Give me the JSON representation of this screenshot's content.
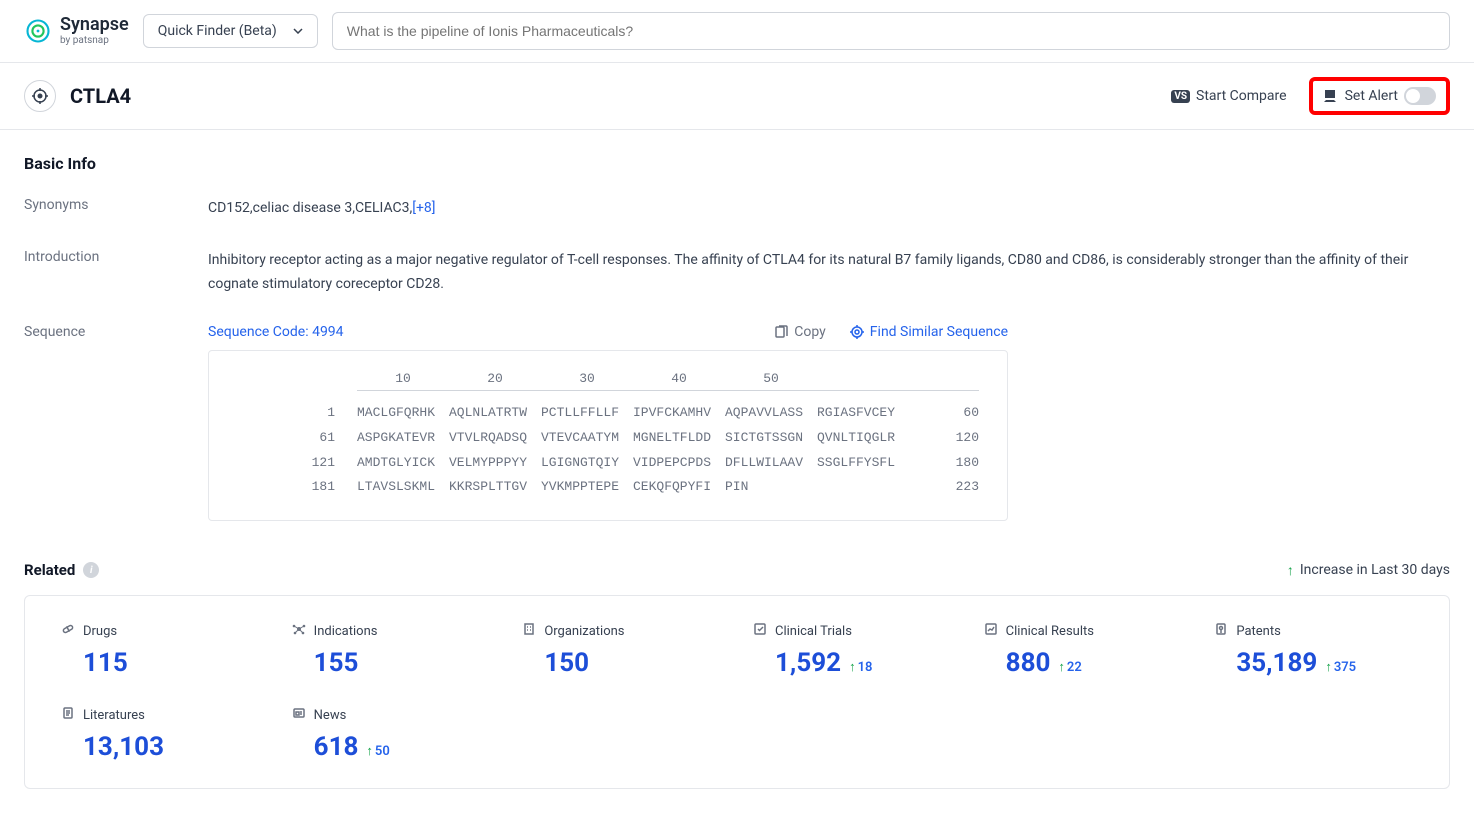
{
  "brand": {
    "name": "Synapse",
    "byline": "by patsnap"
  },
  "finder": {
    "label": "Quick Finder (Beta)"
  },
  "search": {
    "placeholder": "What is the pipeline of Ionis Pharmaceuticals?"
  },
  "entity": {
    "name": "CTLA4",
    "compare_label": "Start Compare",
    "alert_label": "Set Alert"
  },
  "basic_info": {
    "title": "Basic Info",
    "synonyms_label": "Synonyms",
    "synonyms_text": "CD152,celiac disease 3,CELIAC3,",
    "synonyms_more": "[+8]",
    "intro_label": "Introduction",
    "intro_text": "Inhibitory receptor acting as a major negative regulator of T-cell responses. The affinity of CTLA4 for its natural B7 family ligands, CD80 and CD86, is considerably stronger than the affinity of their cognate stimulatory coreceptor CD28.",
    "sequence_label": "Sequence",
    "sequence_code_label": "Sequence Code: 4994",
    "copy_label": "Copy",
    "find_label": "Find Similar Sequence",
    "ruler": [
      "10",
      "20",
      "30",
      "40",
      "50"
    ],
    "rows": [
      {
        "start": "1",
        "blocks": [
          "MACLGFQRHK",
          "AQLNLATRTW",
          "PCTLLFFLLF",
          "IPVFCKAMHV",
          "AQPAVVLASS",
          "RGIASFVCEY"
        ],
        "end": "60"
      },
      {
        "start": "61",
        "blocks": [
          "ASPGKATEVR",
          "VTVLRQADSQ",
          "VTEVCAATYM",
          "MGNELTFLDD",
          "SICTGTSSGN",
          "QVNLTIQGLR"
        ],
        "end": "120"
      },
      {
        "start": "121",
        "blocks": [
          "AMDTGLYICK",
          "VELMYPPPYY",
          "LGIGNGTQIY",
          "VIDPEPCPDS",
          "DFLLWILAAV",
          "SSGLFFYSFL"
        ],
        "end": "180"
      },
      {
        "start": "181",
        "blocks": [
          "LTAVSLSKML",
          "KKRSPLTTGV",
          "YVKMPPTEPE",
          "CEKQFQPYFI",
          "PIN",
          ""
        ],
        "end": "223"
      }
    ]
  },
  "related": {
    "title": "Related",
    "increase_label": "Increase in Last 30 days",
    "stats": [
      {
        "label": "Drugs",
        "value": "115",
        "delta": ""
      },
      {
        "label": "Indications",
        "value": "155",
        "delta": ""
      },
      {
        "label": "Organizations",
        "value": "150",
        "delta": ""
      },
      {
        "label": "Clinical Trials",
        "value": "1,592",
        "delta": "18"
      },
      {
        "label": "Clinical Results",
        "value": "880",
        "delta": "22"
      },
      {
        "label": "Patents",
        "value": "35,189",
        "delta": "375"
      },
      {
        "label": "Literatures",
        "value": "13,103",
        "delta": ""
      },
      {
        "label": "News",
        "value": "618",
        "delta": "50"
      }
    ]
  },
  "colors": {
    "link": "#2563eb",
    "value": "#1d4ed8",
    "up": "#16a34a",
    "border": "#e5e7eb",
    "muted": "#6b7280",
    "highlight": "#ff0000"
  }
}
